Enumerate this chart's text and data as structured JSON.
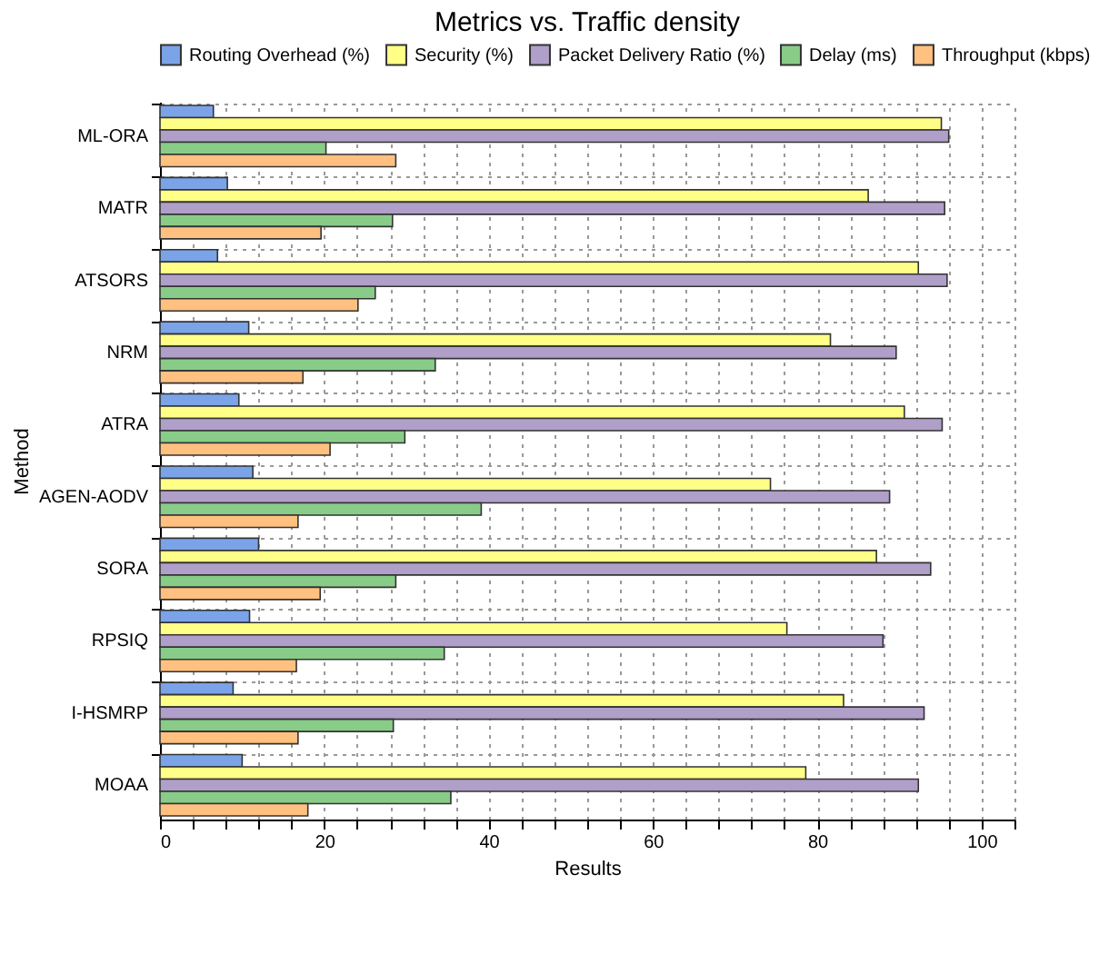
{
  "chart_data": {
    "type": "bar",
    "orientation": "horizontal",
    "title": "Metrics vs. Traffic density",
    "xlabel": "Results",
    "ylabel": "Method",
    "categories": [
      "ML-ORA",
      "MATR",
      "ATSORS",
      "NRM",
      "ATRA",
      "AGEN-AODV",
      "SORA",
      "RPSIQ",
      "I-HSMRP",
      "MOAA"
    ],
    "series": [
      {
        "name": "Routing Overhead (%)",
        "color": "#7ba3e8",
        "values": [
          6.5,
          8.2,
          7.0,
          10.8,
          9.6,
          11.3,
          12.0,
          10.9,
          8.9,
          10.0
        ]
      },
      {
        "name": "Security (%)",
        "color": "#ffff88",
        "values": [
          95.1,
          86.2,
          92.3,
          81.6,
          90.6,
          74.3,
          87.2,
          76.3,
          83.2,
          78.6
        ]
      },
      {
        "name": "Packet Delivery Ratio (%)",
        "color": "#b09fc9",
        "values": [
          96.0,
          95.5,
          95.8,
          89.6,
          95.2,
          88.8,
          93.8,
          88.0,
          93.0,
          92.3
        ]
      },
      {
        "name": "Delay (ms)",
        "color": "#88cc88",
        "values": [
          20.2,
          28.3,
          26.2,
          33.5,
          29.8,
          39.1,
          28.7,
          34.6,
          28.4,
          35.4
        ]
      },
      {
        "name": "Throughput (kbps)",
        "color": "#ffc080",
        "values": [
          28.7,
          19.6,
          24.1,
          17.4,
          20.7,
          16.8,
          19.5,
          16.6,
          16.8,
          18.0
        ]
      }
    ],
    "xlim": [
      0,
      104
    ],
    "xticks": [
      0,
      {
        "value": 4,
        "label": null
      },
      {
        "value": 8,
        "label": null
      },
      {
        "value": 12,
        "label": null
      },
      {
        "value": 16,
        "label": null
      },
      20,
      {
        "value": 24,
        "label": null
      },
      {
        "value": 28,
        "label": null
      },
      {
        "value": 32,
        "label": null
      },
      {
        "value": 36,
        "label": null
      },
      40,
      {
        "value": 44,
        "label": null
      },
      {
        "value": 48,
        "label": null
      },
      {
        "value": 52,
        "label": null
      },
      {
        "value": 56,
        "label": null
      },
      60,
      {
        "value": 64,
        "label": null
      },
      {
        "value": 68,
        "label": null
      },
      {
        "value": 72,
        "label": null
      },
      {
        "value": 76,
        "label": null
      },
      80,
      {
        "value": 84,
        "label": null
      },
      {
        "value": 88,
        "label": null
      },
      {
        "value": 92,
        "label": null
      },
      {
        "value": 96,
        "label": null
      },
      100,
      {
        "value": 104,
        "label": null
      }
    ],
    "grid": true,
    "legend": "top"
  }
}
